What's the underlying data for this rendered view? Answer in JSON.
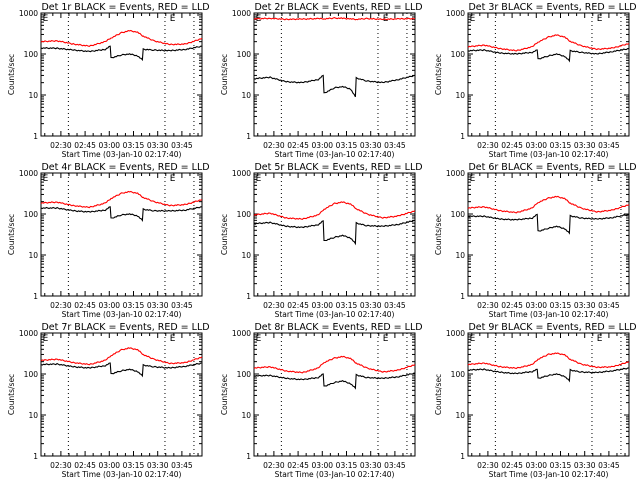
{
  "figure": {
    "start_time_label": "Start Time (03-Jan-10 02:17:40)",
    "ylabel": "Counts/sec",
    "event_marker": "E"
  },
  "chart_data": [
    {
      "type": "line",
      "title": "Det 1r BLACK = Events, RED = LLD",
      "xlabel": "Start Time (03-Jan-10 02:17:40)",
      "ylabel": "Counts/sec",
      "yscale": "log",
      "ylim": [
        1,
        1000
      ],
      "yticks": [
        "1",
        "10",
        "100",
        "1000"
      ],
      "xticks": [
        "02:30",
        "02:45",
        "03:00",
        "03:15",
        "03:30",
        "03:45"
      ],
      "xlim_minutes": [
        0,
        100
      ],
      "x_minutes": [
        0,
        10,
        20,
        30,
        40,
        43,
        43.5,
        50,
        55,
        60,
        63,
        63.5,
        70,
        80,
        90,
        100
      ],
      "dotted_lines_minutes": [
        17,
        77,
        95
      ],
      "event_markers_minutes": [
        1,
        80
      ],
      "series": [
        {
          "name": "LLD",
          "color": "#ff0000",
          "values": [
            200,
            210,
            175,
            155,
            200,
            240,
            245,
            330,
            370,
            340,
            280,
            275,
            210,
            170,
            175,
            240
          ]
        },
        {
          "name": "Events",
          "color": "#000000",
          "values": [
            140,
            138,
            125,
            115,
            130,
            155,
            80,
            95,
            100,
            90,
            72,
            130,
            125,
            120,
            130,
            155
          ]
        }
      ]
    },
    {
      "type": "line",
      "title": "Det 2r BLACK = Events, RED = LLD",
      "xlabel": "Start Time (03-Jan-10 02:17:40)",
      "ylabel": "Counts/sec",
      "yscale": "log",
      "ylim": [
        1,
        1000
      ],
      "yticks": [
        "1",
        "10",
        "100",
        "1000"
      ],
      "xticks": [
        "02:30",
        "02:45",
        "03:00",
        "03:15",
        "03:30",
        "03:45"
      ],
      "xlim_minutes": [
        0,
        100
      ],
      "x_minutes": [
        0,
        10,
        20,
        30,
        40,
        43,
        43.5,
        50,
        55,
        60,
        63,
        63.5,
        70,
        80,
        90,
        100
      ],
      "dotted_lines_minutes": [
        17,
        77,
        95
      ],
      "event_markers_minutes": [
        1,
        80
      ],
      "series": [
        {
          "name": "LLD",
          "color": "#ff0000",
          "values": [
            720,
            740,
            700,
            710,
            730,
            720,
            720,
            750,
            740,
            720,
            700,
            700,
            730,
            700,
            720,
            730
          ]
        },
        {
          "name": "Events",
          "color": "#000000",
          "values": [
            25,
            27,
            21,
            20,
            24,
            30,
            11,
            15,
            16,
            14,
            9,
            26,
            22,
            20,
            24,
            30
          ]
        }
      ]
    },
    {
      "type": "line",
      "title": "Det 3r BLACK = Events, RED = LLD",
      "xlabel": "Start Time (03-Jan-10 02:17:40)",
      "ylabel": "Counts/sec",
      "yscale": "log",
      "ylim": [
        1,
        1000
      ],
      "yticks": [
        "1",
        "10",
        "100",
        "1000"
      ],
      "xticks": [
        "02:30",
        "02:45",
        "03:00",
        "03:15",
        "03:30",
        "03:45"
      ],
      "xlim_minutes": [
        0,
        100
      ],
      "x_minutes": [
        0,
        10,
        20,
        30,
        40,
        43,
        43.5,
        50,
        55,
        60,
        63,
        63.5,
        70,
        80,
        90,
        100
      ],
      "dotted_lines_minutes": [
        17,
        77,
        95
      ],
      "event_markers_minutes": [
        1,
        80
      ],
      "series": [
        {
          "name": "LLD",
          "color": "#ff0000",
          "values": [
            150,
            165,
            135,
            120,
            150,
            190,
            195,
            260,
            290,
            260,
            210,
            205,
            160,
            130,
            140,
            180
          ]
        },
        {
          "name": "Events",
          "color": "#000000",
          "values": [
            120,
            125,
            105,
            100,
            110,
            125,
            75,
            90,
            100,
            88,
            68,
            120,
            110,
            100,
            115,
            135
          ]
        }
      ]
    },
    {
      "type": "line",
      "title": "Det 4r BLACK = Events, RED = LLD",
      "xlabel": "Start Time (03-Jan-10 02:17:40)",
      "ylabel": "Counts/sec",
      "yscale": "log",
      "ylim": [
        1,
        1000
      ],
      "yticks": [
        "1",
        "10",
        "100",
        "1000"
      ],
      "xticks": [
        "02:30",
        "02:45",
        "03:00",
        "03:15",
        "03:30",
        "03:45"
      ],
      "xlim_minutes": [
        0,
        100
      ],
      "x_minutes": [
        0,
        10,
        20,
        30,
        40,
        43,
        43.5,
        50,
        55,
        60,
        63,
        63.5,
        70,
        80,
        90,
        100
      ],
      "dotted_lines_minutes": [
        17,
        77,
        95
      ],
      "event_markers_minutes": [
        1,
        80
      ],
      "series": [
        {
          "name": "LLD",
          "color": "#ff0000",
          "values": [
            185,
            195,
            160,
            145,
            185,
            230,
            240,
            320,
            350,
            320,
            260,
            255,
            200,
            160,
            170,
            225
          ]
        },
        {
          "name": "Events",
          "color": "#000000",
          "values": [
            140,
            140,
            120,
            112,
            125,
            150,
            78,
            95,
            100,
            90,
            70,
            130,
            120,
            118,
            125,
            150
          ]
        }
      ]
    },
    {
      "type": "line",
      "title": "Det 5r BLACK = Events, RED = LLD",
      "xlabel": "Start Time (03-Jan-10 02:17:40)",
      "ylabel": "Counts/sec",
      "yscale": "log",
      "ylim": [
        1,
        1000
      ],
      "yticks": [
        "1",
        "10",
        "100",
        "1000"
      ],
      "xticks": [
        "02:30",
        "02:45",
        "03:00",
        "03:15",
        "03:30",
        "03:45"
      ],
      "xlim_minutes": [
        0,
        100
      ],
      "x_minutes": [
        0,
        10,
        20,
        30,
        40,
        43,
        43.5,
        50,
        55,
        60,
        63,
        63.5,
        70,
        80,
        90,
        100
      ],
      "dotted_lines_minutes": [
        17,
        77,
        95
      ],
      "event_markers_minutes": [
        1,
        80
      ],
      "series": [
        {
          "name": "LLD",
          "color": "#ff0000",
          "values": [
            95,
            105,
            80,
            75,
            95,
            125,
            130,
            180,
            195,
            175,
            140,
            135,
            100,
            80,
            90,
            120
          ]
        },
        {
          "name": "Events",
          "color": "#000000",
          "values": [
            58,
            62,
            50,
            47,
            55,
            68,
            22,
            27,
            30,
            26,
            19,
            60,
            52,
            50,
            56,
            70
          ]
        }
      ]
    },
    {
      "type": "line",
      "title": "Det 6r BLACK = Events, RED = LLD",
      "xlabel": "Start Time (03-Jan-10 02:17:40)",
      "ylabel": "Counts/sec",
      "yscale": "log",
      "ylim": [
        1,
        1000
      ],
      "yticks": [
        "1",
        "10",
        "100",
        "1000"
      ],
      "xticks": [
        "02:30",
        "02:45",
        "03:00",
        "03:15",
        "03:30",
        "03:45"
      ],
      "xlim_minutes": [
        0,
        100
      ],
      "x_minutes": [
        0,
        10,
        20,
        30,
        40,
        43,
        43.5,
        50,
        55,
        60,
        63,
        63.5,
        70,
        80,
        90,
        100
      ],
      "dotted_lines_minutes": [
        17,
        77,
        95
      ],
      "event_markers_minutes": [
        1,
        80
      ],
      "series": [
        {
          "name": "LLD",
          "color": "#ff0000",
          "values": [
            140,
            150,
            120,
            108,
            140,
            185,
            190,
            245,
            265,
            240,
            190,
            185,
            140,
            112,
            125,
            170
          ]
        },
        {
          "name": "Events",
          "color": "#000000",
          "values": [
            88,
            88,
            75,
            72,
            80,
            98,
            38,
            45,
            50,
            44,
            34,
            90,
            80,
            75,
            82,
            98
          ]
        }
      ]
    },
    {
      "type": "line",
      "title": "Det 7r BLACK = Events, RED = LLD",
      "xlabel": "Start Time (03-Jan-10 02:17:40)",
      "ylabel": "Counts/sec",
      "yscale": "log",
      "ylim": [
        1,
        1000
      ],
      "yticks": [
        "1",
        "10",
        "100",
        "1000"
      ],
      "xticks": [
        "02:30",
        "02:45",
        "03:00",
        "03:15",
        "03:30",
        "03:45"
      ],
      "xlim_minutes": [
        0,
        100
      ],
      "x_minutes": [
        0,
        10,
        20,
        30,
        40,
        43,
        43.5,
        50,
        55,
        60,
        63,
        63.5,
        70,
        80,
        90,
        100
      ],
      "dotted_lines_minutes": [
        17,
        77,
        95
      ],
      "event_markers_minutes": [
        1,
        80
      ],
      "series": [
        {
          "name": "LLD",
          "color": "#ff0000",
          "values": [
            215,
            230,
            190,
            170,
            215,
            270,
            280,
            390,
            430,
            390,
            310,
            300,
            230,
            180,
            190,
            260
          ]
        },
        {
          "name": "Events",
          "color": "#000000",
          "values": [
            170,
            175,
            150,
            140,
            160,
            185,
            100,
            120,
            130,
            115,
            90,
            165,
            150,
            140,
            155,
            185
          ]
        }
      ]
    },
    {
      "type": "line",
      "title": "Det 8r BLACK = Events, RED = LLD",
      "xlabel": "Start Time (03-Jan-10 02:17:40)",
      "ylabel": "Counts/sec",
      "yscale": "log",
      "ylim": [
        1,
        1000
      ],
      "yticks": [
        "1",
        "10",
        "100",
        "1000"
      ],
      "xticks": [
        "02:30",
        "02:45",
        "03:00",
        "03:15",
        "03:30",
        "03:45"
      ],
      "xlim_minutes": [
        0,
        100
      ],
      "x_minutes": [
        0,
        10,
        20,
        30,
        40,
        43,
        43.5,
        50,
        55,
        60,
        63,
        63.5,
        70,
        80,
        90,
        100
      ],
      "dotted_lines_minutes": [
        17,
        77,
        95
      ],
      "event_markers_minutes": [
        1,
        80
      ],
      "series": [
        {
          "name": "LLD",
          "color": "#ff0000",
          "values": [
            140,
            150,
            118,
            108,
            140,
            185,
            190,
            245,
            265,
            240,
            190,
            185,
            140,
            112,
            125,
            170
          ]
        },
        {
          "name": "Events",
          "color": "#000000",
          "values": [
            90,
            92,
            78,
            73,
            82,
            100,
            50,
            62,
            68,
            58,
            45,
            95,
            82,
            78,
            86,
            105
          ]
        }
      ]
    },
    {
      "type": "line",
      "title": "Det 9r BLACK = Events, RED = LLD",
      "xlabel": "Start Time (03-Jan-10 02:17:40)",
      "ylabel": "Counts/sec",
      "yscale": "log",
      "ylim": [
        1,
        1000
      ],
      "yticks": [
        "1",
        "10",
        "100",
        "1000"
      ],
      "xticks": [
        "02:30",
        "02:45",
        "03:00",
        "03:15",
        "03:30",
        "03:45"
      ],
      "xlim_minutes": [
        0,
        100
      ],
      "x_minutes": [
        0,
        10,
        20,
        30,
        40,
        43,
        43.5,
        50,
        55,
        60,
        63,
        63.5,
        70,
        80,
        90,
        100
      ],
      "dotted_lines_minutes": [
        17,
        77,
        95
      ],
      "event_markers_minutes": [
        1,
        80
      ],
      "series": [
        {
          "name": "LLD",
          "color": "#ff0000",
          "values": [
            170,
            185,
            150,
            138,
            170,
            220,
            230,
            300,
            320,
            295,
            235,
            230,
            175,
            145,
            150,
            200
          ]
        },
        {
          "name": "Events",
          "color": "#000000",
          "values": [
            125,
            130,
            110,
            102,
            115,
            130,
            78,
            92,
            100,
            88,
            68,
            125,
            112,
            108,
            120,
            140
          ]
        }
      ]
    }
  ]
}
